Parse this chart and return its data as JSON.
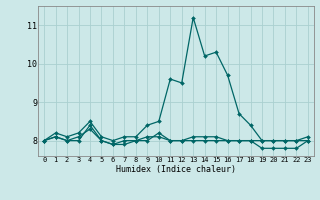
{
  "xlabel": "Humidex (Indice chaleur)",
  "bg_color": "#cce8e8",
  "grid_color": "#aad0d0",
  "line_color": "#006666",
  "x_values": [
    0,
    1,
    2,
    3,
    4,
    5,
    6,
    7,
    8,
    9,
    10,
    11,
    12,
    13,
    14,
    15,
    16,
    17,
    18,
    19,
    20,
    21,
    22,
    23
  ],
  "series": [
    [
      8.0,
      8.2,
      8.1,
      8.2,
      8.5,
      8.1,
      8.0,
      8.1,
      8.1,
      8.4,
      8.5,
      9.6,
      9.5,
      11.2,
      10.2,
      10.3,
      9.7,
      8.7,
      8.4,
      8.0,
      8.0,
      8.0,
      8.0,
      8.1
    ],
    [
      8.0,
      8.1,
      8.0,
      8.0,
      8.4,
      8.0,
      7.9,
      7.9,
      8.0,
      8.1,
      8.1,
      8.0,
      8.0,
      8.0,
      8.0,
      8.0,
      8.0,
      8.0,
      8.0,
      7.8,
      7.8,
      7.8,
      7.8,
      8.0
    ],
    [
      8.0,
      8.1,
      8.0,
      8.1,
      8.3,
      8.0,
      7.9,
      8.0,
      8.0,
      8.0,
      8.2,
      8.0,
      8.0,
      8.1,
      8.1,
      8.1,
      8.0,
      8.0,
      8.0,
      8.0,
      8.0,
      8.0,
      8.0,
      8.0
    ]
  ],
  "ylim": [
    7.6,
    11.5
  ],
  "yticks": [
    8,
    9,
    10,
    11
  ],
  "xlim": [
    -0.5,
    23.5
  ],
  "xticks": [
    0,
    1,
    2,
    3,
    4,
    5,
    6,
    7,
    8,
    9,
    10,
    11,
    12,
    13,
    14,
    15,
    16,
    17,
    18,
    19,
    20,
    21,
    22,
    23
  ],
  "xlabel_fontsize": 6,
  "xtick_fontsize": 5,
  "ytick_fontsize": 6,
  "linewidth": 0.9,
  "markersize": 2
}
